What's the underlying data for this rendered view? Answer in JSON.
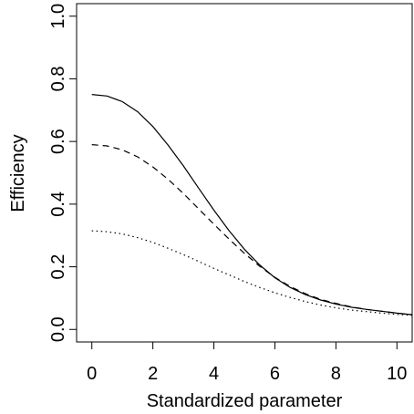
{
  "chart_data": {
    "type": "line",
    "title": "",
    "xlabel": "Standardized parameter",
    "ylabel": "Efficiency",
    "xlim": [
      -0.5,
      10.5
    ],
    "ylim": [
      -0.04,
      1.04
    ],
    "xticks": [
      0,
      2,
      4,
      6,
      8,
      10
    ],
    "xtick_labels": [
      "0",
      "2",
      "4",
      "6",
      "8",
      "10"
    ],
    "yticks": [
      0.0,
      0.2,
      0.4,
      0.6,
      0.8,
      1.0
    ],
    "ytick_labels": [
      "0.0",
      "0.2",
      "0.4",
      "0.6",
      "0.8",
      "1.0"
    ],
    "grid": false,
    "legend": "none",
    "x": [
      0,
      0.5,
      1,
      1.5,
      2,
      2.5,
      3,
      3.5,
      4,
      4.5,
      5,
      5.5,
      6,
      6.5,
      7,
      7.5,
      8,
      8.5,
      9,
      9.5,
      10,
      10.5
    ],
    "series": [
      {
        "style": "solid",
        "values": [
          0.75,
          0.745,
          0.727,
          0.695,
          0.648,
          0.588,
          0.522,
          0.451,
          0.381,
          0.315,
          0.256,
          0.206,
          0.165,
          0.134,
          0.111,
          0.094,
          0.081,
          0.071,
          0.064,
          0.058,
          0.052,
          0.047
        ]
      },
      {
        "style": "dashed",
        "values": [
          0.59,
          0.586,
          0.573,
          0.551,
          0.519,
          0.479,
          0.434,
          0.385,
          0.336,
          0.288,
          0.243,
          0.202,
          0.166,
          0.137,
          0.114,
          0.096,
          0.083,
          0.072,
          0.064,
          0.058,
          0.052,
          0.047
        ]
      },
      {
        "style": "dotted",
        "values": [
          0.315,
          0.312,
          0.305,
          0.293,
          0.278,
          0.259,
          0.239,
          0.217,
          0.195,
          0.174,
          0.153,
          0.134,
          0.117,
          0.102,
          0.089,
          0.078,
          0.069,
          0.062,
          0.057,
          0.052,
          0.048,
          0.045
        ]
      }
    ]
  }
}
